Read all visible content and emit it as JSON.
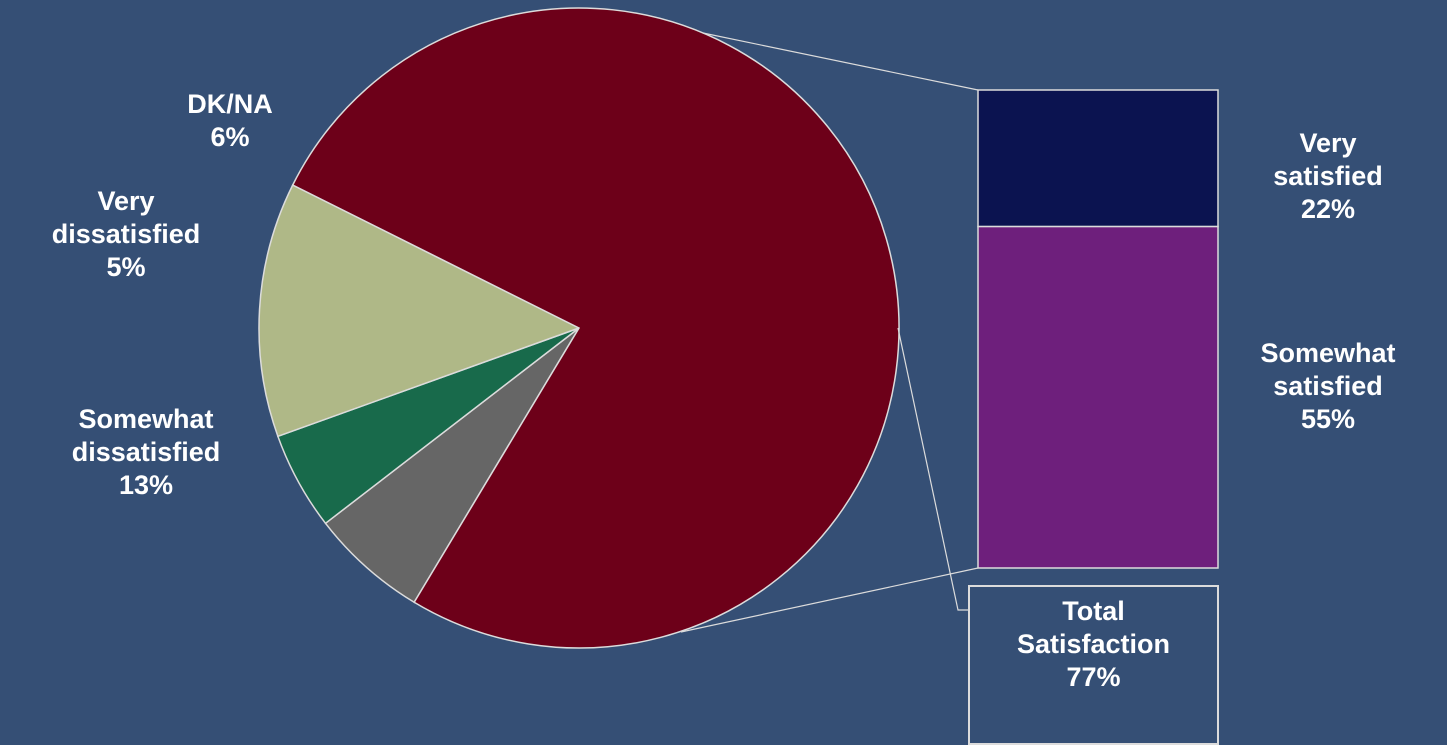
{
  "chart_data": {
    "type": "pie",
    "pie": {
      "slices": [
        {
          "label": "Total Satisfaction",
          "value": 77,
          "color": "#6d0019"
        },
        {
          "label": "DK/NA",
          "value": 6,
          "color": "#666666"
        },
        {
          "label": "Very dissatisfied",
          "value": 5,
          "color": "#186a4b"
        },
        {
          "label": "Somewhat dissatisfied",
          "value": 13,
          "color": "#afb887"
        }
      ]
    },
    "breakdown": {
      "type": "bar",
      "stacked": true,
      "segments": [
        {
          "label": "Very satisfied",
          "value": 22,
          "color": "#0b1350"
        },
        {
          "label": "Somewhat satisfied",
          "value": 55,
          "color": "#6e1f7c"
        }
      ]
    },
    "colors": {
      "background": "#354f75",
      "outline": "#dcdcdc"
    }
  },
  "labels": {
    "dkna": {
      "line1": "DK/NA",
      "line2": "6%"
    },
    "very_dissatisfied": {
      "line1": "Very",
      "line2": "dissatisfied",
      "line3": "5%"
    },
    "somewhat_dissatisfied": {
      "line1": "Somewhat",
      "line2": "dissatisfied",
      "line3": "13%"
    },
    "very_satisfied": {
      "line1": "Very",
      "line2": "satisfied",
      "line3": "22%"
    },
    "somewhat_satisfied": {
      "line1": "Somewhat",
      "line2": "satisfied",
      "line3": "55%"
    },
    "total": {
      "line1": "Total",
      "line2": "Satisfaction",
      "line3": "77%"
    }
  }
}
